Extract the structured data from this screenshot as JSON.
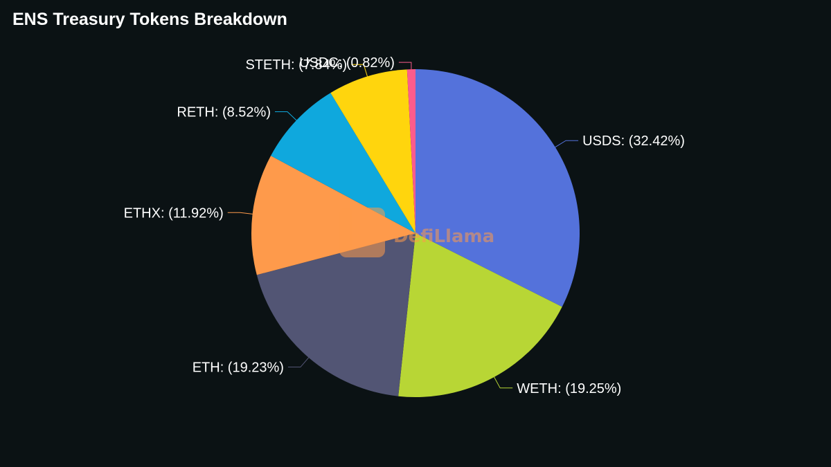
{
  "chart_data": {
    "type": "pie",
    "title": "ENS Treasury Tokens Breakdown",
    "slices": [
      {
        "name": "USDS",
        "value": 32.42,
        "label": "USDS: (32.42%)",
        "color": "#5472db"
      },
      {
        "name": "WETH",
        "value": 19.25,
        "label": "WETH: (19.25%)",
        "color": "#b8d635"
      },
      {
        "name": "ETH",
        "value": 19.23,
        "label": "ETH: (19.23%)",
        "color": "#525574"
      },
      {
        "name": "ETHX",
        "value": 11.92,
        "label": "ETHX: (11.92%)",
        "color": "#fe9a4b"
      },
      {
        "name": "RETH",
        "value": 8.52,
        "label": "RETH: (8.52%)",
        "color": "#0fa8dd"
      },
      {
        "name": "STETH",
        "value": 7.84,
        "label": "STETH: (7.84%)",
        "color": "#ffd50d"
      },
      {
        "name": "USDC",
        "value": 0.82,
        "label": "USDC: (0.82%)",
        "color": "#fc5c8c"
      }
    ],
    "legend": "none"
  },
  "watermark": {
    "text": "DefiLlama",
    "color": "#fe9a4b"
  }
}
